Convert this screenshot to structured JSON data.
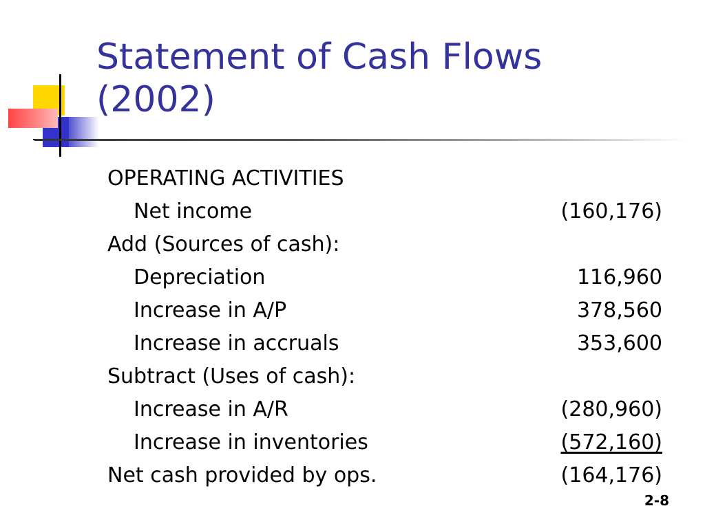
{
  "title": {
    "line1": "Statement of Cash Flows",
    "line2": "(2002)"
  },
  "rows": [
    {
      "label": "OPERATING ACTIVITIES",
      "amount": ""
    },
    {
      "label": "Net income",
      "amount": "(160,176)"
    },
    {
      "label": "Add (Sources of cash):",
      "amount": ""
    },
    {
      "label": "Depreciation",
      "amount": "116,960"
    },
    {
      "label": "Increase in A/P",
      "amount": "378,560"
    },
    {
      "label": "Increase in accruals",
      "amount": "353,600"
    },
    {
      "label": "Subtract (Uses of cash):",
      "amount": ""
    },
    {
      "label": "Increase in A/R",
      "amount": "(280,960)"
    },
    {
      "label": "Increase in inventories",
      "amount": "(572,160)"
    },
    {
      "label": "Net cash provided by ops.",
      "amount": "(164,176)"
    }
  ],
  "page_number": "2-8",
  "colors": {
    "title": "#333399",
    "logo_yellow": "#ffd700",
    "logo_blue": "#3333cc",
    "logo_red": "#ff4444"
  }
}
